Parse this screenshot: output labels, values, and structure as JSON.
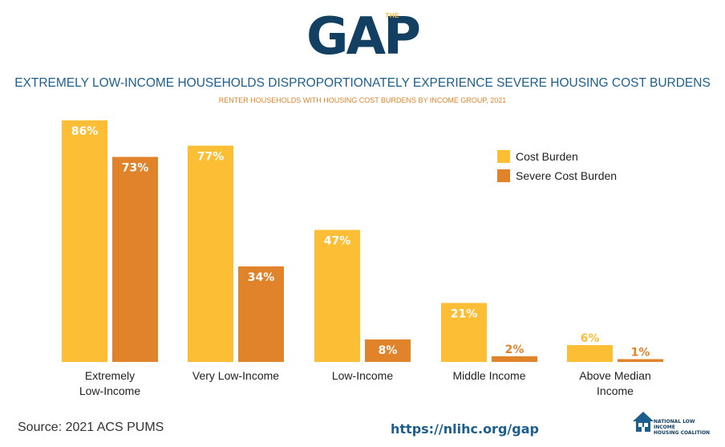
{
  "logo": {
    "word": "GAP",
    "small": "THE"
  },
  "title": "EXTREMELY LOW-INCOME HOUSEHOLDS DISPROPORTIONATELY EXPERIENCE SEVERE HOUSING COST BURDENS",
  "subtitle": "RENTER HOUSEHOLDS WITH HOUSING COST BURDENS BY INCOME GROUP, 2021",
  "chart_data": {
    "type": "bar",
    "categories": [
      [
        "Extremely",
        "Low-Income"
      ],
      [
        "Very Low-Income"
      ],
      [
        "Low-Income"
      ],
      [
        "Middle Income"
      ],
      [
        "Above Median",
        "Income"
      ]
    ],
    "series": [
      {
        "name": "Cost Burden",
        "values": [
          86,
          77,
          47,
          21,
          6
        ],
        "color": "#fbbe35"
      },
      {
        "name": "Severe Cost Burden",
        "values": [
          73,
          34,
          8,
          2,
          1
        ],
        "color": "#e0832a"
      }
    ],
    "ylim": [
      0,
      86
    ],
    "value_suffix": "%",
    "legend_position": "top-right",
    "grid": false
  },
  "source": "Source: 2021 ACS PUMS",
  "url": "https://nlihc.org/gap",
  "org": {
    "line1": "NATIONAL LOW INCOME",
    "line2": "HOUSING COALITION"
  }
}
